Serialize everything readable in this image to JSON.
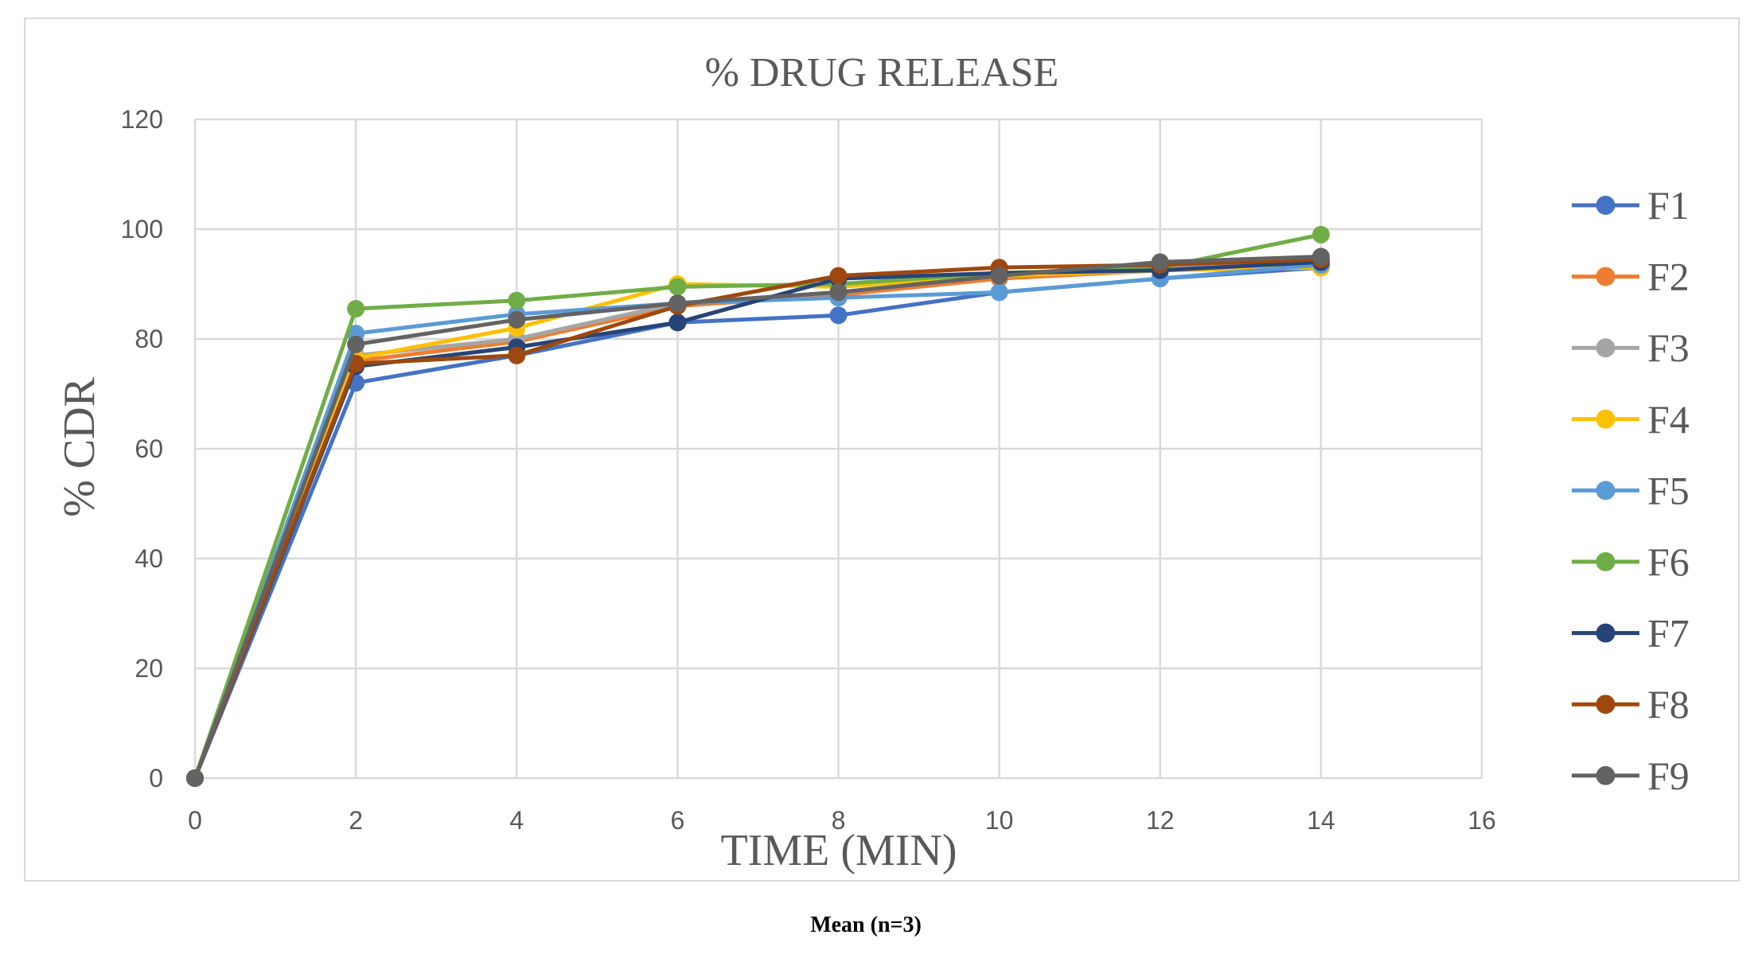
{
  "caption": "Mean (n=3)",
  "chart_data": {
    "type": "line",
    "title": "% DRUG RELEASE",
    "xlabel": "TIME (MIN)",
    "ylabel": "% CDR",
    "xlim": [
      0,
      16
    ],
    "ylim": [
      0,
      120
    ],
    "xticks": [
      0,
      2,
      4,
      6,
      8,
      10,
      12,
      14,
      16
    ],
    "yticks": [
      0,
      20,
      40,
      60,
      80,
      100,
      120
    ],
    "grid": true,
    "legend_position": "right",
    "x": [
      0,
      2,
      4,
      6,
      8,
      10,
      12,
      14
    ],
    "series": [
      {
        "name": "F1",
        "color": "#4472c4",
        "values": [
          0,
          72.0,
          77.0,
          83.0,
          84.3,
          88.5,
          91.0,
          93.0
        ]
      },
      {
        "name": "F2",
        "color": "#ed7d31",
        "values": [
          0,
          76.0,
          79.5,
          86.0,
          88.0,
          91.0,
          92.5,
          93.5
        ]
      },
      {
        "name": "F3",
        "color": "#a5a5a5",
        "values": [
          0,
          77.0,
          80.0,
          86.5,
          88.5,
          91.5,
          93.0,
          94.0
        ]
      },
      {
        "name": "F4",
        "color": "#ffc000",
        "values": [
          0,
          76.5,
          82.0,
          90.0,
          89.5,
          91.5,
          92.5,
          93.0
        ]
      },
      {
        "name": "F5",
        "color": "#5b9bd5",
        "values": [
          0,
          81.0,
          84.5,
          86.5,
          87.5,
          88.5,
          91.0,
          93.5
        ]
      },
      {
        "name": "F6",
        "color": "#70ad47",
        "values": [
          0,
          85.5,
          87.0,
          89.5,
          90.0,
          92.0,
          93.0,
          99.0
        ]
      },
      {
        "name": "F7",
        "color": "#264478",
        "values": [
          0,
          75.0,
          78.5,
          83.0,
          91.0,
          92.0,
          92.5,
          94.0
        ]
      },
      {
        "name": "F8",
        "color": "#9e480e",
        "values": [
          0,
          75.5,
          77.0,
          86.0,
          91.5,
          93.0,
          93.5,
          94.5
        ]
      },
      {
        "name": "F9",
        "color": "#636363",
        "values": [
          0,
          79.0,
          83.5,
          86.5,
          88.5,
          91.5,
          94.0,
          95.0
        ]
      }
    ]
  }
}
